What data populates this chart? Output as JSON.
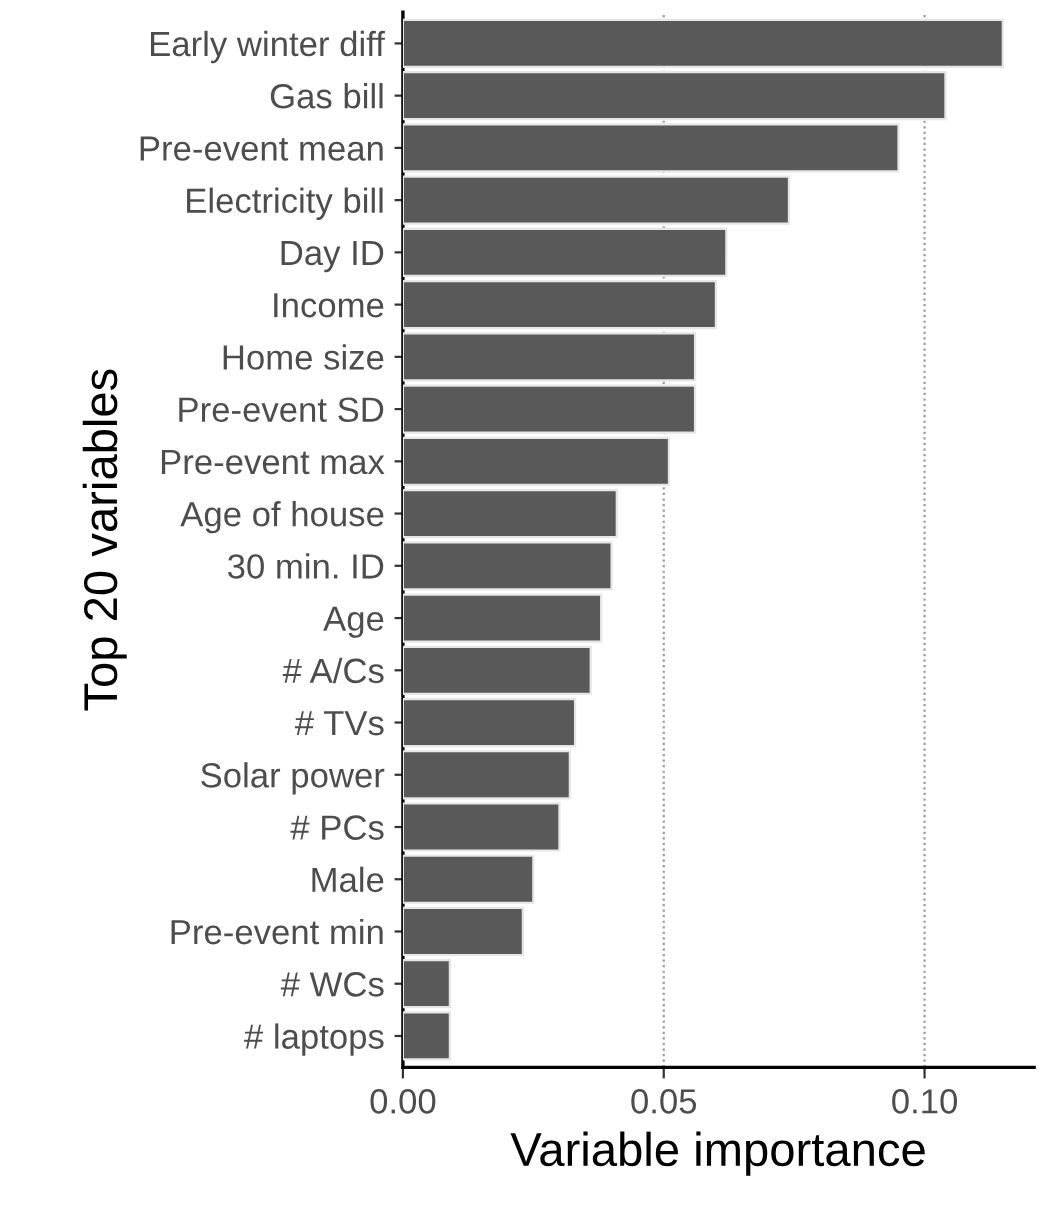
{
  "chart_data": {
    "type": "bar",
    "orientation": "horizontal",
    "xlabel": "Variable importance",
    "ylabel": "Top 20 variables",
    "categories": [
      "Early winter diff",
      "Gas bill",
      "Pre-event mean",
      "Electricity bill",
      "Day ID",
      "Income",
      "Home size",
      "Pre-event SD",
      "Pre-event max",
      "Age of house",
      "30 min. ID",
      "Age",
      "# A/Cs",
      "# TVs",
      "Solar power",
      "# PCs",
      "Male",
      "Pre-event min",
      "# WCs",
      "# laptops"
    ],
    "values": [
      0.115,
      0.104,
      0.095,
      0.074,
      0.062,
      0.06,
      0.056,
      0.056,
      0.051,
      0.041,
      0.04,
      0.038,
      0.036,
      0.033,
      0.032,
      0.03,
      0.025,
      0.023,
      0.009,
      0.009
    ],
    "color": "#595959",
    "xlim": [
      0,
      0.121
    ],
    "xticks": [
      {
        "value": 0,
        "label": "0.00"
      },
      {
        "value": 0.05,
        "label": "0.05"
      },
      {
        "value": 0.1,
        "label": "0.10"
      }
    ],
    "grid": "x"
  }
}
